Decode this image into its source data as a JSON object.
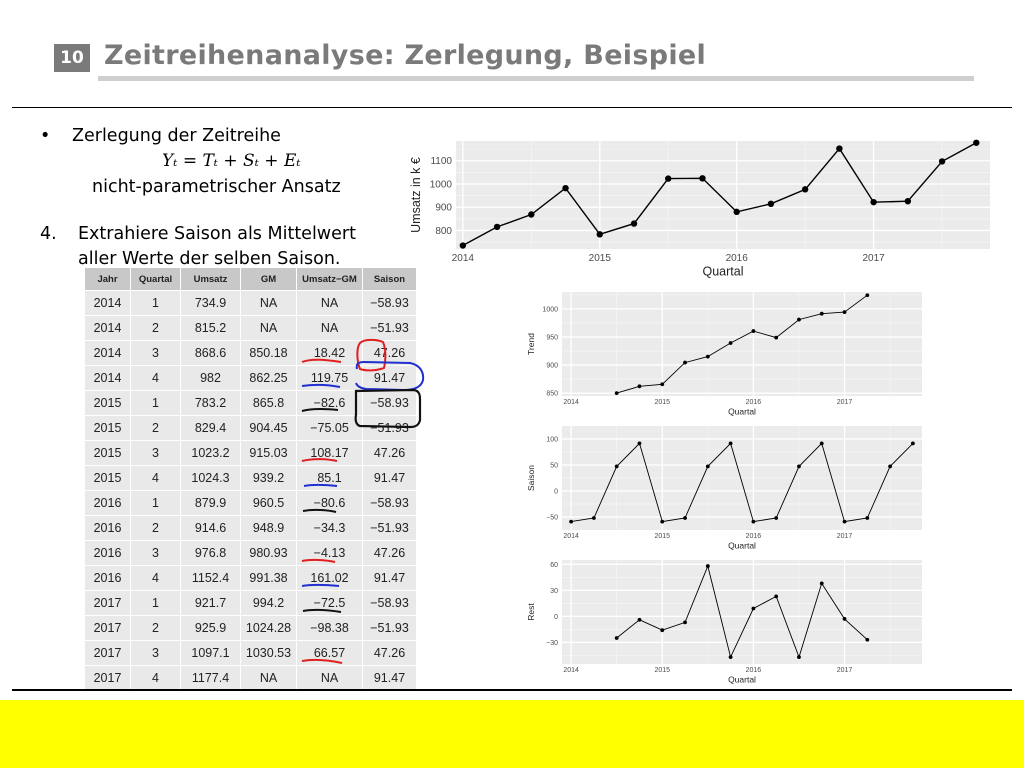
{
  "slide": {
    "number": "10",
    "title": "Zeitreihenanalyse: Zerlegung, Beispiel"
  },
  "content": {
    "bullet": "•",
    "bullet_text": "Zerlegung der Zeitreihe",
    "formula": "Yₜ = Tₜ + Sₜ   + Eₜ",
    "approach": "nicht-parametrischer Ansatz",
    "step_number": "4.",
    "step_line1": "Extrahiere Saison als Mittelwert",
    "step_line2": "aller Werte der selben Saison."
  },
  "table": {
    "headers": [
      "Jahr",
      "Quartal",
      "Umsatz",
      "GM",
      "Umsatz−GM",
      "Saison"
    ],
    "rows": [
      [
        "2014",
        "1",
        "734.9",
        "NA",
        "NA",
        "−58.93"
      ],
      [
        "2014",
        "2",
        "815.2",
        "NA",
        "NA",
        "−51.93"
      ],
      [
        "2014",
        "3",
        "868.6",
        "850.18",
        "18.42",
        "47.26"
      ],
      [
        "2014",
        "4",
        "982",
        "862.25",
        "119.75",
        "91.47"
      ],
      [
        "2015",
        "1",
        "783.2",
        "865.8",
        "−82.6",
        "−58.93"
      ],
      [
        "2015",
        "2",
        "829.4",
        "904.45",
        "−75.05",
        "−51.93"
      ],
      [
        "2015",
        "3",
        "1023.2",
        "915.03",
        "108.17",
        "47.26"
      ],
      [
        "2015",
        "4",
        "1024.3",
        "939.2",
        "85.1",
        "91.47"
      ],
      [
        "2016",
        "1",
        "879.9",
        "960.5",
        "−80.6",
        "−58.93"
      ],
      [
        "2016",
        "2",
        "914.6",
        "948.9",
        "−34.3",
        "−51.93"
      ],
      [
        "2016",
        "3",
        "976.8",
        "980.93",
        "−4.13",
        "47.26"
      ],
      [
        "2016",
        "4",
        "1152.4",
        "991.38",
        "161.02",
        "91.47"
      ],
      [
        "2017",
        "1",
        "921.7",
        "994.2",
        "−72.5",
        "−58.93"
      ],
      [
        "2017",
        "2",
        "925.9",
        "1024.28",
        "−98.38",
        "−51.93"
      ],
      [
        "2017",
        "3",
        "1097.1",
        "1030.53",
        "66.57",
        "47.26"
      ],
      [
        "2017",
        "4",
        "1177.4",
        "NA",
        "NA",
        "91.47"
      ]
    ]
  },
  "colors": {
    "title_gray": "#7a7a7a",
    "panel_bg": "#ebebeb",
    "annotation_red": "#e02020",
    "annotation_blue": "#2030d0",
    "annotation_black": "#111111",
    "footer_yellow": "#ffff00"
  },
  "chart_data": [
    {
      "type": "line",
      "x": [
        2014.0,
        2014.25,
        2014.5,
        2014.75,
        2015.0,
        2015.25,
        2015.5,
        2015.75,
        2016.0,
        2016.25,
        2016.5,
        2016.75,
        2017.0,
        2017.25,
        2017.5,
        2017.75
      ],
      "values": [
        734.9,
        815.2,
        868.6,
        982,
        783.2,
        829.4,
        1023.2,
        1024.3,
        879.9,
        914.6,
        976.8,
        1152.4,
        921.7,
        925.9,
        1097.1,
        1177.4
      ],
      "xlabel": "Quartal",
      "ylabel": "Umsatz in k €",
      "xticks": [
        "2014",
        "2015",
        "2016",
        "2017"
      ],
      "yticks": [
        "800",
        "900",
        "1000",
        "1100"
      ],
      "xlim": [
        2013.95,
        2017.85
      ],
      "ylim": [
        720,
        1185
      ],
      "grid": true
    },
    {
      "type": "line",
      "x": [
        2014.5,
        2014.75,
        2015.0,
        2015.25,
        2015.5,
        2015.75,
        2016.0,
        2016.25,
        2016.5,
        2016.75,
        2017.0,
        2017.25
      ],
      "values": [
        850.18,
        862.25,
        865.8,
        904.45,
        915.03,
        939.2,
        960.5,
        948.9,
        980.93,
        991.38,
        994.2,
        1024.28
      ],
      "xlabel": "Quartal",
      "ylabel": "Trend",
      "xticks": [
        "2014",
        "2015",
        "2016",
        "2017"
      ],
      "yticks": [
        "850",
        "900",
        "950",
        "1000"
      ],
      "xlim": [
        2013.9,
        2017.85
      ],
      "ylim": [
        845,
        1030
      ],
      "grid": true
    },
    {
      "type": "line",
      "x": [
        2014.0,
        2014.25,
        2014.5,
        2014.75,
        2015.0,
        2015.25,
        2015.5,
        2015.75,
        2016.0,
        2016.25,
        2016.5,
        2016.75,
        2017.0,
        2017.25,
        2017.5,
        2017.75
      ],
      "values": [
        -58.93,
        -51.93,
        47.26,
        91.47,
        -58.93,
        -51.93,
        47.26,
        91.47,
        -58.93,
        -51.93,
        47.26,
        91.47,
        -58.93,
        -51.93,
        47.26,
        91.47
      ],
      "xlabel": "Quartal",
      "ylabel": "Saison",
      "xticks": [
        "2014",
        "2015",
        "2016",
        "2017"
      ],
      "yticks": [
        "−50",
        "0",
        "50",
        "100"
      ],
      "xlim": [
        2013.9,
        2017.85
      ],
      "ylim": [
        -75,
        125
      ],
      "grid": true
    },
    {
      "type": "line",
      "x": [
        2014.5,
        2014.75,
        2015.0,
        2015.25,
        2015.5,
        2015.75,
        2016.0,
        2016.25,
        2016.5,
        2016.75,
        2017.0,
        2017.25
      ],
      "values": [
        -25,
        -4,
        -16,
        -7,
        58,
        -47,
        9,
        23,
        -47,
        38,
        -3,
        -27
      ],
      "xlabel": "Quartal",
      "ylabel": "Rest",
      "xticks": [
        "2014",
        "2015",
        "2016",
        "2017"
      ],
      "yticks": [
        "−30",
        "0",
        "30",
        "60"
      ],
      "xlim": [
        2013.9,
        2017.85
      ],
      "ylim": [
        -55,
        65
      ],
      "grid": true
    }
  ]
}
